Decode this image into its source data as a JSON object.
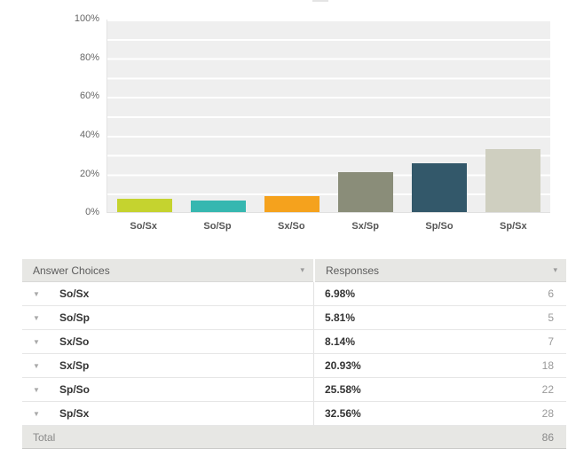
{
  "chart_data": {
    "type": "bar",
    "categories": [
      "So/Sx",
      "So/Sp",
      "Sx/So",
      "Sx/Sp",
      "Sp/So",
      "Sp/Sx"
    ],
    "values": [
      6.98,
      5.81,
      8.14,
      20.93,
      25.58,
      32.56
    ],
    "colors": [
      "#c5d32f",
      "#36b7b0",
      "#f5a21d",
      "#8a8d79",
      "#33586a",
      "#cfcfc0"
    ],
    "title": "",
    "xlabel": "",
    "ylabel": "",
    "ylim": [
      0,
      100
    ],
    "yticks": [
      "100%",
      "80%",
      "60%",
      "40%",
      "20%",
      "0%"
    ],
    "grid": "horizontal",
    "legend": "none",
    "plot_background": "#efefef"
  },
  "table": {
    "headers": {
      "answer_choices": "Answer Choices",
      "responses": "Responses"
    },
    "rows": [
      {
        "label": "So/Sx",
        "percent": "6.98%",
        "count": "6"
      },
      {
        "label": "So/Sp",
        "percent": "5.81%",
        "count": "5"
      },
      {
        "label": "Sx/So",
        "percent": "8.14%",
        "count": "7"
      },
      {
        "label": "Sx/Sp",
        "percent": "20.93%",
        "count": "18"
      },
      {
        "label": "Sp/So",
        "percent": "25.58%",
        "count": "22"
      },
      {
        "label": "Sp/Sx",
        "percent": "32.56%",
        "count": "28"
      }
    ],
    "total_label": "Total",
    "total_count": "86"
  },
  "icons": {
    "header_dropdown": "▾",
    "row_expand": "▼"
  }
}
